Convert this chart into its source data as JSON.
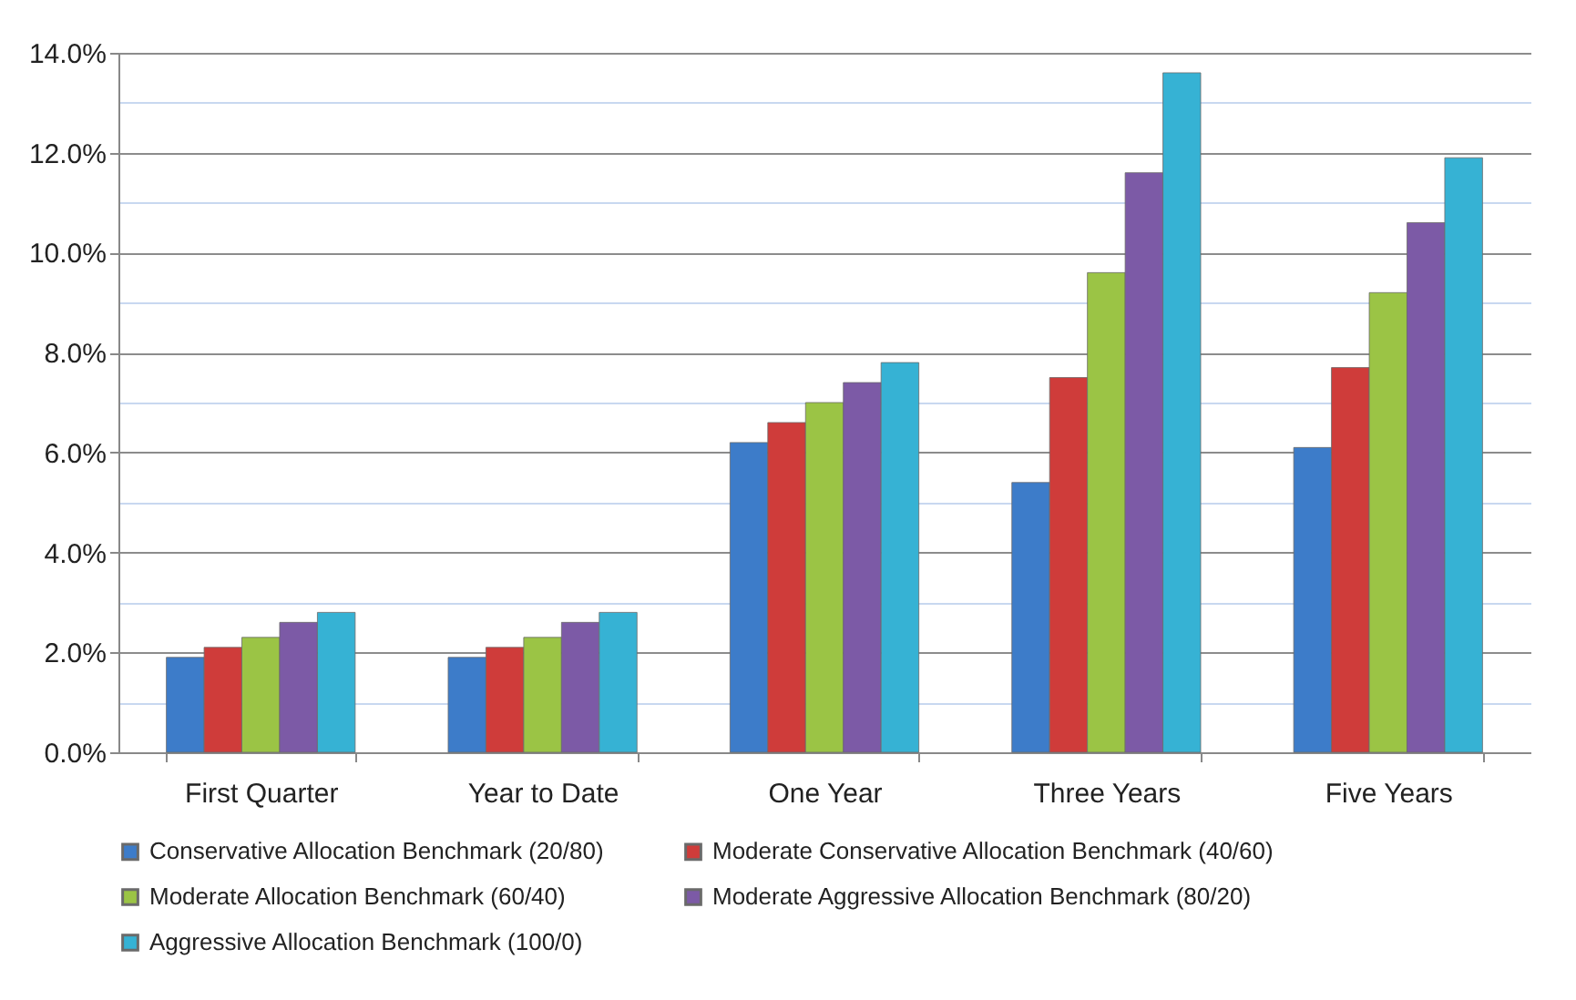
{
  "chart_data": {
    "type": "bar",
    "categories": [
      "First Quarter",
      "Year to Date",
      "One Year",
      "Three Years",
      "Five Years"
    ],
    "series": [
      {
        "name": "Conservative Allocation Benchmark (20/80)",
        "color": "#3d7cc9",
        "values": [
          1.9,
          1.9,
          6.2,
          5.4,
          6.1
        ]
      },
      {
        "name": "Moderate Conservative Allocation Benchmark (40/60)",
        "color": "#cf3c3a",
        "values": [
          2.1,
          2.1,
          6.6,
          7.5,
          7.7
        ]
      },
      {
        "name": "Moderate Allocation Benchmark (60/40)",
        "color": "#9bc445",
        "values": [
          2.3,
          2.3,
          7.0,
          9.6,
          9.2
        ]
      },
      {
        "name": "Moderate Aggressive Allocation Benchmark (80/20)",
        "color": "#7c5aa6",
        "values": [
          2.6,
          2.6,
          7.4,
          11.6,
          10.6
        ]
      },
      {
        "name": "Aggressive Allocation Benchmark (100/0)",
        "color": "#36b2d4",
        "values": [
          2.8,
          2.8,
          7.8,
          13.6,
          11.9
        ]
      }
    ],
    "ylim": [
      0,
      14
    ],
    "yticks": [
      {
        "value": 0,
        "label": "0.0%"
      },
      {
        "value": 1,
        "label": null
      },
      {
        "value": 2,
        "label": "2.0%"
      },
      {
        "value": 3,
        "label": null
      },
      {
        "value": 4,
        "label": "4.0%"
      },
      {
        "value": 5,
        "label": null
      },
      {
        "value": 6,
        "label": "6.0%"
      },
      {
        "value": 7,
        "label": null
      },
      {
        "value": 8,
        "label": "8.0%"
      },
      {
        "value": 9,
        "label": null
      },
      {
        "value": 10,
        "label": "10.0%"
      },
      {
        "value": 11,
        "label": null
      },
      {
        "value": 12,
        "label": "12.0%"
      },
      {
        "value": 13,
        "label": null
      },
      {
        "value": 14,
        "label": "14.0%"
      }
    ],
    "grid": true,
    "legend": "bottom"
  }
}
